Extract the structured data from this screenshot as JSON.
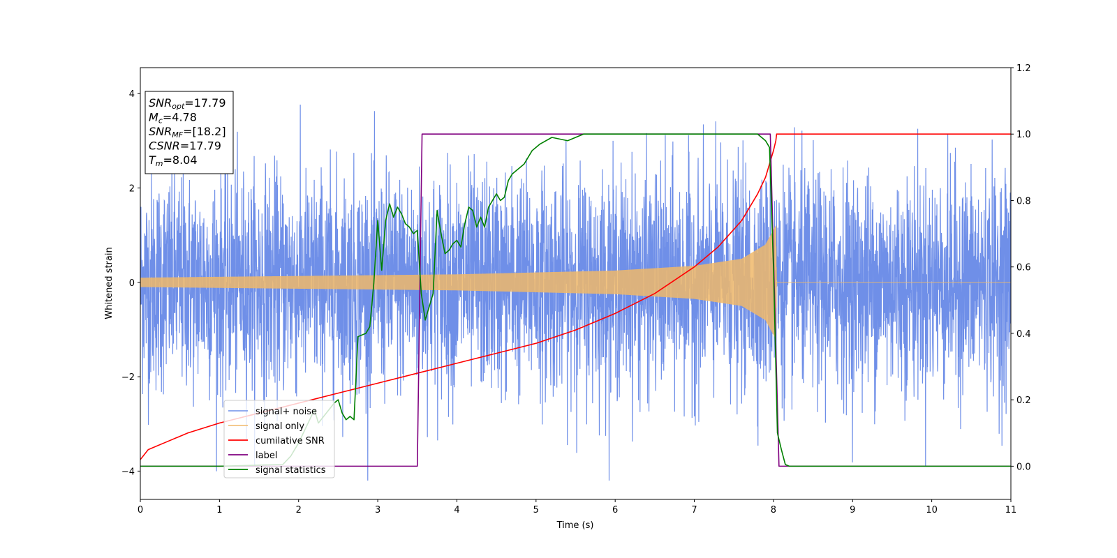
{
  "chart_data": {
    "type": "line",
    "xlabel": "Time (s)",
    "ylabel": "Whitened strain",
    "xlim": [
      0,
      11
    ],
    "ylim_left": [
      -4.6,
      4.55
    ],
    "ylim_right": [
      -0.1,
      1.2
    ],
    "x_ticks": [
      "0",
      "1",
      "2",
      "3",
      "4",
      "5",
      "6",
      "7",
      "8",
      "9",
      "10",
      "11"
    ],
    "y_ticks_left": [
      "4",
      "2",
      "0",
      "−2",
      "−4"
    ],
    "y_ticks_right": [
      "1.2",
      "1.0",
      "0.8",
      "0.6",
      "0.4",
      "0.2",
      "0.0"
    ],
    "grid": false,
    "legend_position": "lower-left",
    "info_box": {
      "lines": [
        {
          "main": "SNR",
          "sub": "opt",
          "value": "=17.79"
        },
        {
          "main": "M",
          "sub": "c",
          "value": "=4.78"
        },
        {
          "main": "SNR",
          "sub": "MF",
          "value": "=[18.2]"
        },
        {
          "main": "CSNR",
          "sub": "",
          "value": "=17.79"
        },
        {
          "main": "T",
          "sub": "m",
          "value": "=8.04"
        }
      ]
    },
    "series": [
      {
        "name": "signal+ noise",
        "axis": "left",
        "color": "#6f8fe8",
        "description": "noise-dominated strain, roughly ±2.5 with spikes up to ±4",
        "noise_std": 1.15,
        "x_range": [
          0,
          11
        ]
      },
      {
        "name": "signal only",
        "axis": "left",
        "color": "#f0b86a",
        "chirp_amplitude": [
          {
            "t": 0,
            "a": 0.1
          },
          {
            "t": 4,
            "a": 0.17
          },
          {
            "t": 6,
            "a": 0.25
          },
          {
            "t": 7,
            "a": 0.35
          },
          {
            "t": 7.6,
            "a": 0.5
          },
          {
            "t": 7.9,
            "a": 0.8
          },
          {
            "t": 8.03,
            "a": 1.2
          },
          {
            "t": 8.04,
            "a": 0.0
          },
          {
            "t": 11,
            "a": 0.0
          }
        ]
      },
      {
        "name": "cumilative SNR",
        "axis": "right",
        "color": "#ff0000",
        "x": [
          0,
          0.1,
          0.3,
          0.6,
          1,
          1.5,
          2,
          2.5,
          3,
          3.5,
          4,
          4.5,
          5,
          5.5,
          6,
          6.5,
          7,
          7.3,
          7.6,
          7.8,
          7.9,
          7.95,
          8.0,
          8.03,
          8.04,
          11
        ],
        "y": [
          0.02,
          0.05,
          0.07,
          0.1,
          0.13,
          0.16,
          0.19,
          0.22,
          0.25,
          0.28,
          0.31,
          0.34,
          0.37,
          0.41,
          0.46,
          0.52,
          0.6,
          0.66,
          0.74,
          0.82,
          0.87,
          0.91,
          0.95,
          0.98,
          1.0,
          1.0
        ]
      },
      {
        "name": "label",
        "axis": "right",
        "color": "#800080",
        "x": [
          0,
          3.5,
          3.56,
          7.96,
          8.07,
          11
        ],
        "y": [
          0,
          0,
          1,
          1,
          0,
          0
        ]
      },
      {
        "name": "signal statistics",
        "axis": "right",
        "color": "#008000",
        "x": [
          0,
          1.0,
          1.8,
          1.9,
          2.0,
          2.1,
          2.2,
          2.25,
          2.35,
          2.45,
          2.5,
          2.55,
          2.6,
          2.65,
          2.7,
          2.75,
          2.85,
          2.9,
          2.95,
          3.0,
          3.05,
          3.1,
          3.15,
          3.2,
          3.25,
          3.3,
          3.35,
          3.4,
          3.45,
          3.5,
          3.55,
          3.6,
          3.65,
          3.7,
          3.75,
          3.8,
          3.85,
          3.9,
          3.95,
          4.0,
          4.05,
          4.1,
          4.15,
          4.2,
          4.25,
          4.3,
          4.35,
          4.4,
          4.45,
          4.5,
          4.55,
          4.6,
          4.65,
          4.7,
          4.75,
          4.8,
          4.85,
          4.9,
          4.95,
          5.0,
          5.05,
          5.2,
          5.4,
          5.5,
          5.6,
          5.8,
          6.0,
          6.5,
          6.8,
          7.0,
          7.2,
          7.5,
          7.8,
          7.85,
          7.9,
          7.95,
          8.0,
          8.05,
          8.1,
          8.15,
          8.2,
          11
        ],
        "y": [
          0,
          0,
          0.005,
          0.03,
          0.07,
          0.12,
          0.17,
          0.13,
          0.16,
          0.19,
          0.2,
          0.16,
          0.14,
          0.15,
          0.14,
          0.39,
          0.4,
          0.42,
          0.55,
          0.74,
          0.59,
          0.74,
          0.79,
          0.75,
          0.78,
          0.76,
          0.73,
          0.72,
          0.7,
          0.71,
          0.52,
          0.44,
          0.48,
          0.52,
          0.77,
          0.7,
          0.64,
          0.65,
          0.67,
          0.68,
          0.66,
          0.73,
          0.78,
          0.77,
          0.72,
          0.75,
          0.72,
          0.78,
          0.8,
          0.82,
          0.8,
          0.81,
          0.86,
          0.88,
          0.89,
          0.9,
          0.91,
          0.93,
          0.95,
          0.96,
          0.97,
          0.99,
          0.98,
          0.99,
          1.0,
          1.0,
          1.0,
          1.0,
          1.0,
          1.0,
          1.0,
          1.0,
          1.0,
          0.99,
          0.98,
          0.96,
          0.6,
          0.1,
          0.05,
          0.005,
          0,
          0
        ]
      }
    ]
  }
}
